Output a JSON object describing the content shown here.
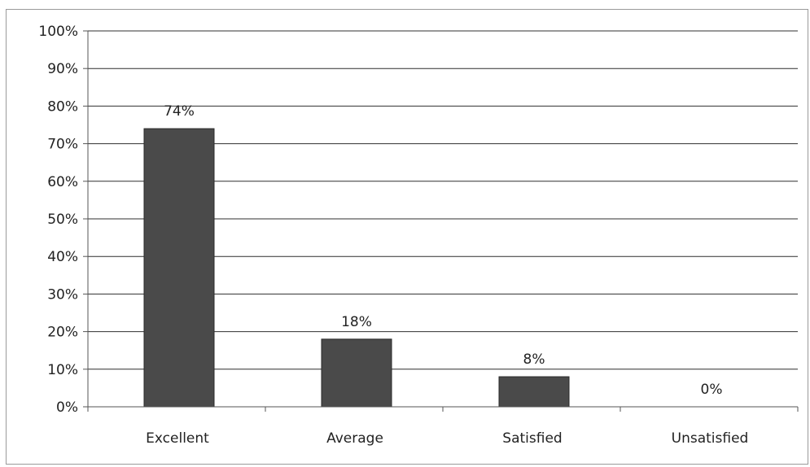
{
  "chart_data": {
    "type": "bar",
    "categories": [
      "Excellent",
      "Average",
      "Satisfied",
      "Unsatisfied"
    ],
    "values": [
      74,
      18,
      8,
      0
    ],
    "data_labels": [
      "74%",
      "18%",
      "8%",
      "0%"
    ],
    "ylim": [
      0,
      100
    ],
    "y_ticks": [
      "0%",
      "10%",
      "20%",
      "30%",
      "40%",
      "50%",
      "60%",
      "70%",
      "80%",
      "90%",
      "100%"
    ],
    "grid": true,
    "legend": "none",
    "title": "",
    "xlabel": "",
    "ylabel": "",
    "bar_color": "#4a4a4a"
  }
}
